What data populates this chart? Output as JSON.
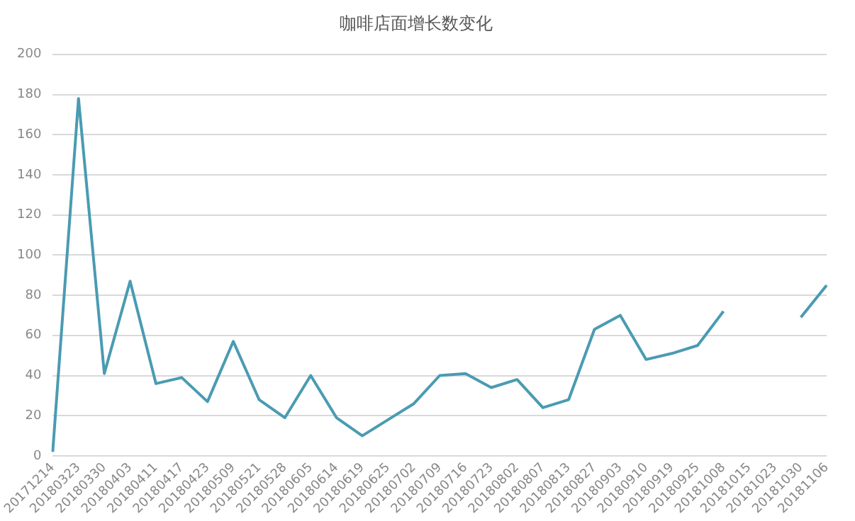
{
  "chart_data": {
    "type": "line",
    "title": "咖啡店面增长数变化",
    "categories": [
      "20171214",
      "20180323",
      "20180330",
      "20180403",
      "20180411",
      "20180417",
      "20180423",
      "20180509",
      "20180521",
      "20180528",
      "20180605",
      "20180614",
      "20180619",
      "20180625",
      "20180702",
      "20180709",
      "20180716",
      "20180723",
      "20180802",
      "20180807",
      "20180813",
      "20180827",
      "20180903",
      "20180910",
      "20180919",
      "20180925",
      "20181008",
      "20181015",
      "20181023",
      "20181030",
      "20181106"
    ],
    "series": [
      {
        "color": "#4a9bb2",
        "values": [
          2,
          178,
          41,
          87,
          36,
          39,
          27,
          57,
          28,
          19,
          40,
          19,
          10,
          18,
          26,
          40,
          41,
          34,
          38,
          24,
          28,
          63,
          70,
          48,
          51,
          55,
          72,
          null,
          null,
          69,
          85
        ]
      }
    ],
    "ylim": [
      0,
      200
    ],
    "yticks": [
      0,
      20,
      40,
      60,
      80,
      100,
      120,
      140,
      160,
      180,
      200
    ],
    "grid": "y",
    "legend": false,
    "marker": "none",
    "line_style": "solid"
  }
}
